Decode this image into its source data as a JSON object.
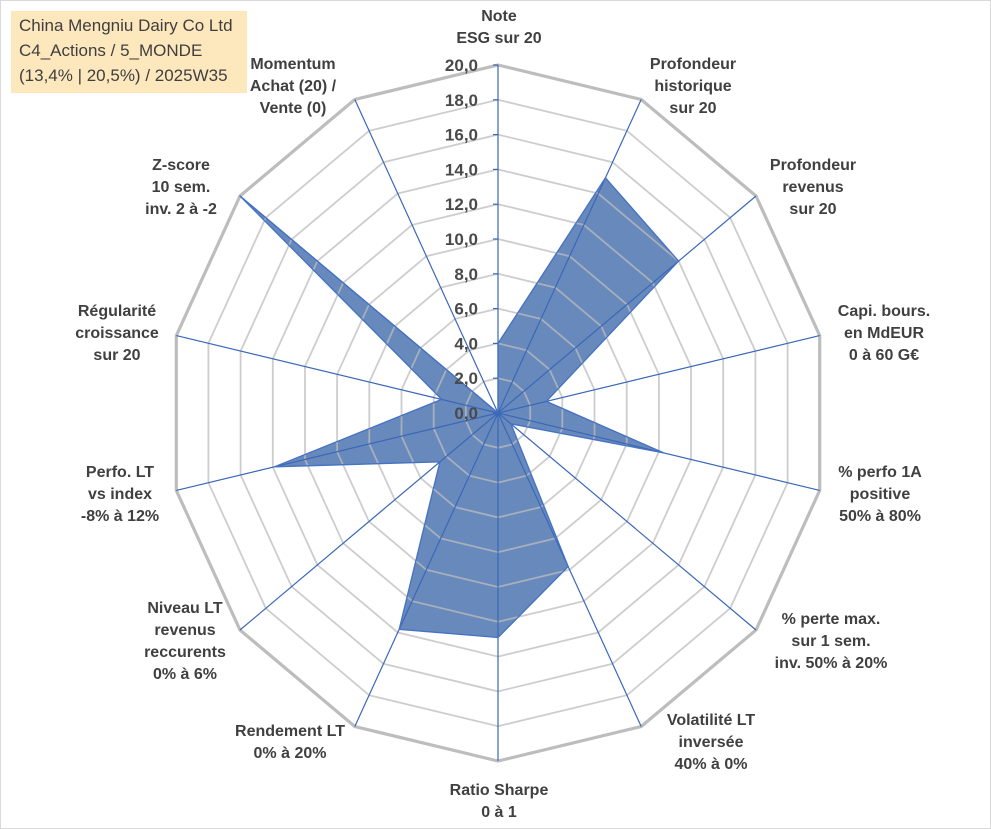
{
  "chart_data": {
    "type": "radar",
    "title": [
      "China Mengniu Dairy Co Ltd",
      "C4_Actions / 5_MONDE",
      "(13,4% | 20,5%) / 2025W35"
    ],
    "categories": [
      [
        "Note",
        "ESG sur 20"
      ],
      [
        "Profondeur",
        "historique",
        "sur 20"
      ],
      [
        "Profondeur",
        "revenus",
        "sur 20"
      ],
      [
        "Capi. bours.",
        "en MdEUR",
        "0 à 60 G€"
      ],
      [
        "% perfo 1A",
        "positive",
        "50% à 80%"
      ],
      [
        "% perte max.",
        "sur 1 sem.",
        "inv. 50% à 20%"
      ],
      [
        "Volatilité LT",
        "inversée",
        "40% à 0%"
      ],
      [
        "Ratio Sharpe",
        "0 à 1"
      ],
      [
        "Rendement LT",
        "0% à 20%"
      ],
      [
        "Niveau LT",
        "revenus",
        "reccurents",
        "0% à 6%"
      ],
      [
        "Perfo. LT",
        "vs index",
        "-8% à 12%"
      ],
      [
        "Régularité",
        "croissance",
        "sur 20"
      ],
      [
        "Z-score",
        "10 sem.",
        "inv. 2 à -2"
      ],
      [
        "Momentum",
        "Achat (20) /",
        "Vente (0)"
      ]
    ],
    "values": [
      4.0,
      15.0,
      14.0,
      3.0,
      10.3,
      1.0,
      9.8,
      12.9,
      13.8,
      4.5,
      13.9,
      3.5,
      20.0,
      0.0
    ],
    "ylim": [
      0,
      20
    ],
    "tick_step": 2,
    "tick_labels": [
      "0,0",
      "2,0",
      "4,0",
      "6,0",
      "8,0",
      "10,0",
      "12,0",
      "14,0",
      "16,0",
      "18,0",
      "20,0"
    ],
    "grid": true,
    "colors": {
      "series_fill": "#5f83b8",
      "series_line": "#4472c4",
      "spoke": "#3b68b7",
      "grid": "#bcbcbc",
      "outer_grid": "#bdbdbd",
      "title_background": "#fde7bd",
      "text": "#404040"
    }
  }
}
